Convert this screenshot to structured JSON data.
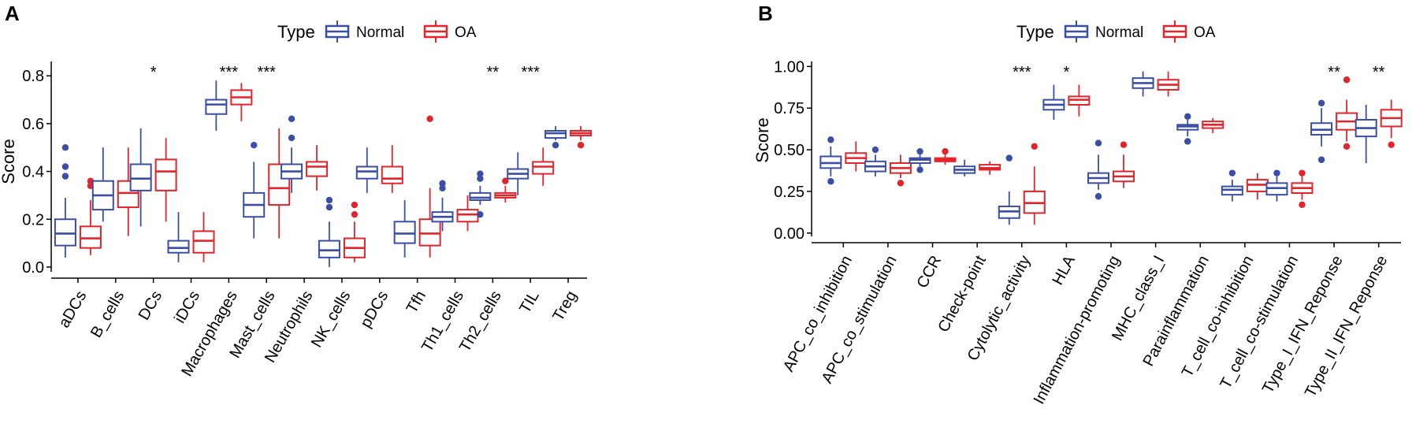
{
  "colors": {
    "normal": "#3a4ea5",
    "oa": "#e3242b",
    "axis": "#000000"
  },
  "chart_data": [
    {
      "type": "boxplot",
      "panel_label": "A",
      "ylabel": "Score",
      "ylim": [
        -0.02,
        0.86
      ],
      "yticks": [
        0.0,
        0.2,
        0.4,
        0.6,
        0.8
      ],
      "ytick_labels": [
        "0.0",
        "0.2",
        "0.4",
        "0.6",
        "0.8"
      ],
      "legend": {
        "title": "Type",
        "entries": [
          "Normal",
          "OA"
        ],
        "position": "top"
      },
      "series_names": [
        "Normal",
        "OA"
      ],
      "categories": [
        "aDCs",
        "B_cells",
        "DCs",
        "iDCs",
        "Macrophages",
        "Mast_cells",
        "Neutrophils",
        "NK_cells",
        "pDCs",
        "Tfh",
        "Th1_cells",
        "Th2_cells",
        "TIL",
        "Treg"
      ],
      "significance": [
        "",
        "",
        "*",
        "",
        "***",
        "***",
        "",
        "",
        "",
        "",
        "",
        "**",
        "***",
        ""
      ],
      "boxes": [
        {
          "normal": [
            0.04,
            0.09,
            0.14,
            0.2,
            0.29,
            [
              0.38,
              0.42,
              0.5
            ]
          ],
          "oa": [
            0.05,
            0.08,
            0.12,
            0.17,
            0.28,
            [
              0.34,
              0.36
            ]
          ]
        },
        {
          "normal": [
            0.19,
            0.24,
            0.3,
            0.36,
            0.5,
            []
          ],
          "oa": [
            0.13,
            0.25,
            0.31,
            0.36,
            0.5,
            []
          ]
        },
        {
          "normal": [
            0.17,
            0.32,
            0.37,
            0.43,
            0.58,
            []
          ],
          "oa": [
            0.19,
            0.32,
            0.4,
            0.45,
            0.54,
            []
          ]
        },
        {
          "normal": [
            0.02,
            0.06,
            0.08,
            0.11,
            0.23,
            []
          ],
          "oa": [
            0.02,
            0.06,
            0.11,
            0.15,
            0.23,
            []
          ]
        },
        {
          "normal": [
            0.57,
            0.64,
            0.68,
            0.7,
            0.78,
            []
          ],
          "oa": [
            0.61,
            0.68,
            0.71,
            0.74,
            0.77,
            []
          ]
        },
        {
          "normal": [
            0.12,
            0.21,
            0.26,
            0.31,
            0.44,
            [
              0.51
            ]
          ],
          "oa": [
            0.12,
            0.26,
            0.33,
            0.43,
            0.58,
            []
          ]
        },
        {
          "normal": [
            0.31,
            0.37,
            0.4,
            0.43,
            0.5,
            [
              0.54,
              0.62
            ]
          ],
          "oa": [
            0.32,
            0.38,
            0.42,
            0.44,
            0.51,
            []
          ]
        },
        {
          "normal": [
            0.0,
            0.04,
            0.07,
            0.11,
            0.19,
            [
              0.25,
              0.28
            ]
          ],
          "oa": [
            0.02,
            0.04,
            0.08,
            0.12,
            0.19,
            [
              0.22,
              0.26
            ]
          ]
        },
        {
          "normal": [
            0.31,
            0.37,
            0.4,
            0.42,
            0.5,
            []
          ],
          "oa": [
            0.31,
            0.35,
            0.37,
            0.42,
            0.51,
            []
          ]
        },
        {
          "normal": [
            0.04,
            0.1,
            0.14,
            0.19,
            0.28,
            []
          ],
          "oa": [
            0.04,
            0.09,
            0.14,
            0.2,
            0.33,
            [
              0.62
            ]
          ]
        },
        {
          "normal": [
            0.15,
            0.19,
            0.21,
            0.23,
            0.29,
            [
              0.33,
              0.35
            ]
          ],
          "oa": [
            0.15,
            0.19,
            0.22,
            0.24,
            0.3,
            []
          ]
        },
        {
          "normal": [
            0.26,
            0.28,
            0.29,
            0.31,
            0.34,
            [
              0.22,
              0.37,
              0.39
            ]
          ],
          "oa": [
            0.27,
            0.29,
            0.3,
            0.31,
            0.34,
            [
              0.36
            ]
          ]
        },
        {
          "normal": [
            0.3,
            0.37,
            0.39,
            0.41,
            0.48,
            []
          ],
          "oa": [
            0.34,
            0.39,
            0.42,
            0.44,
            0.5,
            []
          ]
        },
        {
          "normal": [
            0.53,
            0.54,
            0.56,
            0.57,
            0.59,
            [
              0.51
            ]
          ],
          "oa": [
            0.53,
            0.55,
            0.56,
            0.57,
            0.59,
            [
              0.51
            ]
          ]
        }
      ]
    },
    {
      "type": "boxplot",
      "panel_label": "B",
      "ylabel": "Score",
      "ylim": [
        -0.02,
        1.03
      ],
      "yticks": [
        0.0,
        0.25,
        0.5,
        0.75,
        1.0
      ],
      "ytick_labels": [
        "0.00",
        "0.25",
        "0.50",
        "0.75",
        "1.00"
      ],
      "legend": {
        "title": "Type",
        "entries": [
          "Normal",
          "OA"
        ],
        "position": "top"
      },
      "series_names": [
        "Normal",
        "OA"
      ],
      "categories": [
        "APC_co_inhibition",
        "APC_co_stimulation",
        "CCR",
        "Check-point",
        "Cytolytic_activity",
        "HLA",
        "Inflammation-promoting",
        "MHC_class_I",
        "Parainflammation",
        "T_cell_co-inhibition",
        "T_cell_co-stimulation",
        "Type_I_IFN_Reponse",
        "Type_II_IFN_Reponse"
      ],
      "significance": [
        "",
        "",
        "",
        "",
        "***",
        "*",
        "",
        "",
        "",
        "",
        "",
        "**",
        "**"
      ],
      "boxes": [
        {
          "normal": [
            0.34,
            0.39,
            0.42,
            0.46,
            0.52,
            [
              0.31,
              0.56
            ]
          ],
          "oa": [
            0.37,
            0.42,
            0.45,
            0.48,
            0.55,
            []
          ]
        },
        {
          "normal": [
            0.34,
            0.37,
            0.4,
            0.43,
            0.47,
            [
              0.5
            ]
          ],
          "oa": [
            0.33,
            0.36,
            0.39,
            0.42,
            0.47,
            [
              0.3
            ]
          ]
        },
        {
          "normal": [
            0.4,
            0.42,
            0.44,
            0.45,
            0.47,
            [
              0.38,
              0.49
            ]
          ],
          "oa": [
            0.41,
            0.43,
            0.44,
            0.45,
            0.47,
            [
              0.49
            ]
          ]
        },
        {
          "normal": [
            0.34,
            0.36,
            0.38,
            0.4,
            0.44,
            []
          ],
          "oa": [
            0.35,
            0.38,
            0.39,
            0.41,
            0.43,
            []
          ]
        },
        {
          "normal": [
            0.05,
            0.09,
            0.13,
            0.16,
            0.25,
            [
              0.45
            ]
          ],
          "oa": [
            0.05,
            0.12,
            0.18,
            0.25,
            0.4,
            [
              0.52
            ]
          ]
        },
        {
          "normal": [
            0.68,
            0.74,
            0.77,
            0.8,
            0.89,
            []
          ],
          "oa": [
            0.7,
            0.77,
            0.8,
            0.82,
            0.89,
            []
          ]
        },
        {
          "normal": [
            0.26,
            0.3,
            0.33,
            0.36,
            0.47,
            [
              0.22,
              0.54
            ]
          ],
          "oa": [
            0.27,
            0.31,
            0.34,
            0.37,
            0.47,
            [
              0.53
            ]
          ]
        },
        {
          "normal": [
            0.82,
            0.87,
            0.9,
            0.93,
            0.97,
            []
          ],
          "oa": [
            0.82,
            0.86,
            0.89,
            0.92,
            0.97,
            []
          ]
        },
        {
          "normal": [
            0.58,
            0.62,
            0.64,
            0.65,
            0.68,
            [
              0.55,
              0.7
            ]
          ],
          "oa": [
            0.6,
            0.63,
            0.65,
            0.67,
            0.69,
            []
          ]
        },
        {
          "normal": [
            0.19,
            0.23,
            0.26,
            0.28,
            0.32,
            [
              0.36
            ]
          ],
          "oa": [
            0.2,
            0.25,
            0.29,
            0.32,
            0.36,
            []
          ]
        },
        {
          "normal": [
            0.19,
            0.23,
            0.27,
            0.3,
            0.34,
            [
              0.36
            ]
          ],
          "oa": [
            0.2,
            0.24,
            0.27,
            0.3,
            0.34,
            [
              0.17,
              0.36
            ]
          ]
        },
        {
          "normal": [
            0.52,
            0.59,
            0.62,
            0.66,
            0.75,
            [
              0.44,
              0.78
            ]
          ],
          "oa": [
            0.55,
            0.62,
            0.67,
            0.72,
            0.8,
            [
              0.52,
              0.92
            ]
          ]
        },
        {
          "normal": [
            0.42,
            0.58,
            0.63,
            0.68,
            0.77,
            []
          ],
          "oa": [
            0.57,
            0.64,
            0.69,
            0.74,
            0.8,
            [
              0.53
            ]
          ]
        }
      ]
    }
  ]
}
